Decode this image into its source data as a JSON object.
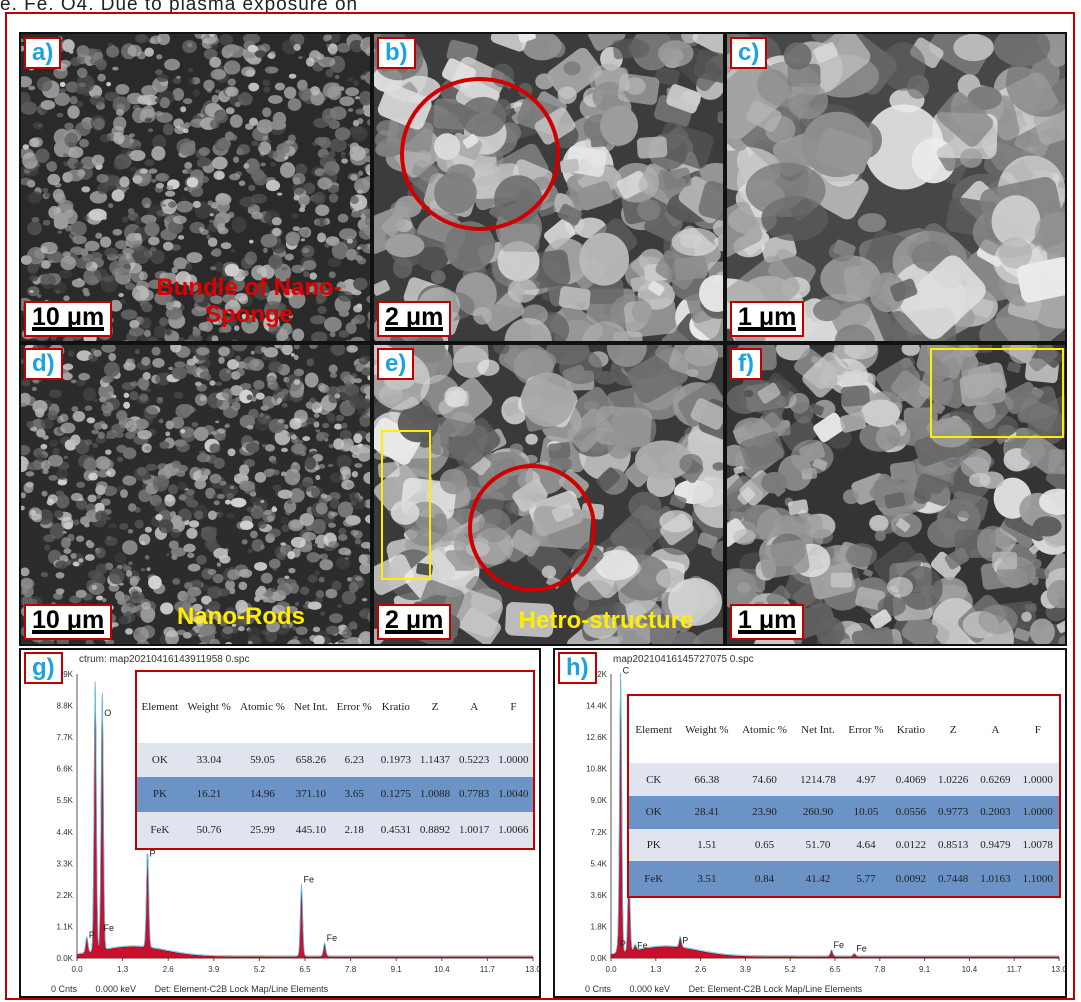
{
  "caption": "e. Fe. O4. Due to plasma exposure on",
  "panels": [
    {
      "label": "a)",
      "scale": "10 μm",
      "note": "Bundle of Nano-Sponge"
    },
    {
      "label": "b)",
      "scale": "2 μm"
    },
    {
      "label": "c)",
      "scale": "1 μm"
    },
    {
      "label": "d)",
      "scale": "10 μm",
      "note": "Nano-Rods"
    },
    {
      "label": "e)",
      "scale": "2 μm",
      "note": "Hetro-structure"
    },
    {
      "label": "f)",
      "scale": "1 μm"
    }
  ],
  "eds": [
    {
      "label": "g)",
      "header": "ctrum: map20210416143911958 0.spc",
      "footer": {
        "counts": "0 Cnts",
        "kev": "0.000 keV",
        "det": "Det: Element-C2B Lock Map/Line Elements"
      },
      "chart_data": {
        "type": "line",
        "xlabel": "",
        "ylabel": "",
        "x_ticks": [
          "0.0",
          "1.3",
          "2.6",
          "3.9",
          "5.2",
          "6.5",
          "7.8",
          "9.1",
          "10.4",
          "11.7",
          "13.0"
        ],
        "y_ticks": [
          "0.0K",
          "1.1K",
          "2.2K",
          "3.3K",
          "4.4K",
          "5.5K",
          "6.6K",
          "7.7K",
          "8.8K",
          "9.9K"
        ],
        "xlim": [
          0,
          13
        ],
        "ylim": [
          0,
          9.9
        ],
        "peaks": [
          {
            "x": 0.28,
            "y": 0.55,
            "label": "P"
          },
          {
            "x": 0.52,
            "y": 9.4,
            "label": ""
          },
          {
            "x": 0.72,
            "y": 8.3,
            "label": "O"
          },
          {
            "x": 0.7,
            "y": 0.8,
            "label": "Fe"
          },
          {
            "x": 2.01,
            "y": 3.4,
            "label": "P"
          },
          {
            "x": 6.4,
            "y": 2.5,
            "label": "Fe"
          },
          {
            "x": 7.06,
            "y": 0.45,
            "label": "Fe"
          }
        ]
      },
      "table": {
        "headers": [
          "Element",
          "Weight %",
          "Atomic %",
          "Net Int.",
          "Error %",
          "Kratio",
          "Z",
          "A",
          "F"
        ],
        "rows": [
          [
            "OK",
            "33.04",
            "59.05",
            "658.26",
            "6.23",
            "0.1973",
            "1.1437",
            "0.5223",
            "1.0000"
          ],
          [
            "PK",
            "16.21",
            "14.96",
            "371.10",
            "3.65",
            "0.1275",
            "1.0088",
            "0.7783",
            "1.0040"
          ],
          [
            "FeK",
            "50.76",
            "25.99",
            "445.10",
            "2.18",
            "0.4531",
            "0.8892",
            "1.0017",
            "1.0066"
          ]
        ]
      }
    },
    {
      "label": "h)",
      "header": "map20210416145727075 0.spc",
      "footer": {
        "counts": "0 Cnts",
        "kev": "0.000 keV",
        "det": "Det: Element-C2B Lock Map/Line Elements"
      },
      "chart_data": {
        "type": "line",
        "xlabel": "",
        "ylabel": "",
        "x_ticks": [
          "0.0",
          "1.3",
          "2.6",
          "3.9",
          "5.2",
          "6.5",
          "7.8",
          "9.1",
          "10.4",
          "11.7",
          "13.0"
        ],
        "y_ticks": [
          "0.0K",
          "1.8K",
          "3.6K",
          "5.4K",
          "7.2K",
          "9.0K",
          "10.8K",
          "12.6K",
          "14.4K",
          "16.2K"
        ],
        "xlim": [
          0,
          13
        ],
        "ylim": [
          0,
          16.2
        ],
        "peaks": [
          {
            "x": 0.28,
            "y": 16.0,
            "label": "C"
          },
          {
            "x": 0.52,
            "y": 4.8,
            "label": "O"
          },
          {
            "x": 0.2,
            "y": 0.4,
            "label": "P"
          },
          {
            "x": 0.7,
            "y": 0.3,
            "label": "Fe"
          },
          {
            "x": 2.01,
            "y": 0.6,
            "label": "P"
          },
          {
            "x": 6.4,
            "y": 0.35,
            "label": "Fe"
          },
          {
            "x": 7.06,
            "y": 0.15,
            "label": "Fe"
          }
        ]
      },
      "table": {
        "headers": [
          "Element",
          "Weight %",
          "Atomic %",
          "Net Int.",
          "Error %",
          "Kratio",
          "Z",
          "A",
          "F"
        ],
        "rows": [
          [
            "CK",
            "66.38",
            "74.60",
            "1214.78",
            "4.97",
            "0.4069",
            "1.0226",
            "0.6269",
            "1.0000"
          ],
          [
            "OK",
            "28.41",
            "23.90",
            "260.90",
            "10.05",
            "0.0556",
            "0.9773",
            "0.2003",
            "1.0000"
          ],
          [
            "PK",
            "1.51",
            "0.65",
            "51.70",
            "4.64",
            "0.0122",
            "0.8513",
            "0.9479",
            "1.0078"
          ],
          [
            "FeK",
            "3.51",
            "0.84",
            "41.42",
            "5.77",
            "0.0092",
            "0.7448",
            "1.0163",
            "1.1000"
          ]
        ]
      }
    }
  ]
}
